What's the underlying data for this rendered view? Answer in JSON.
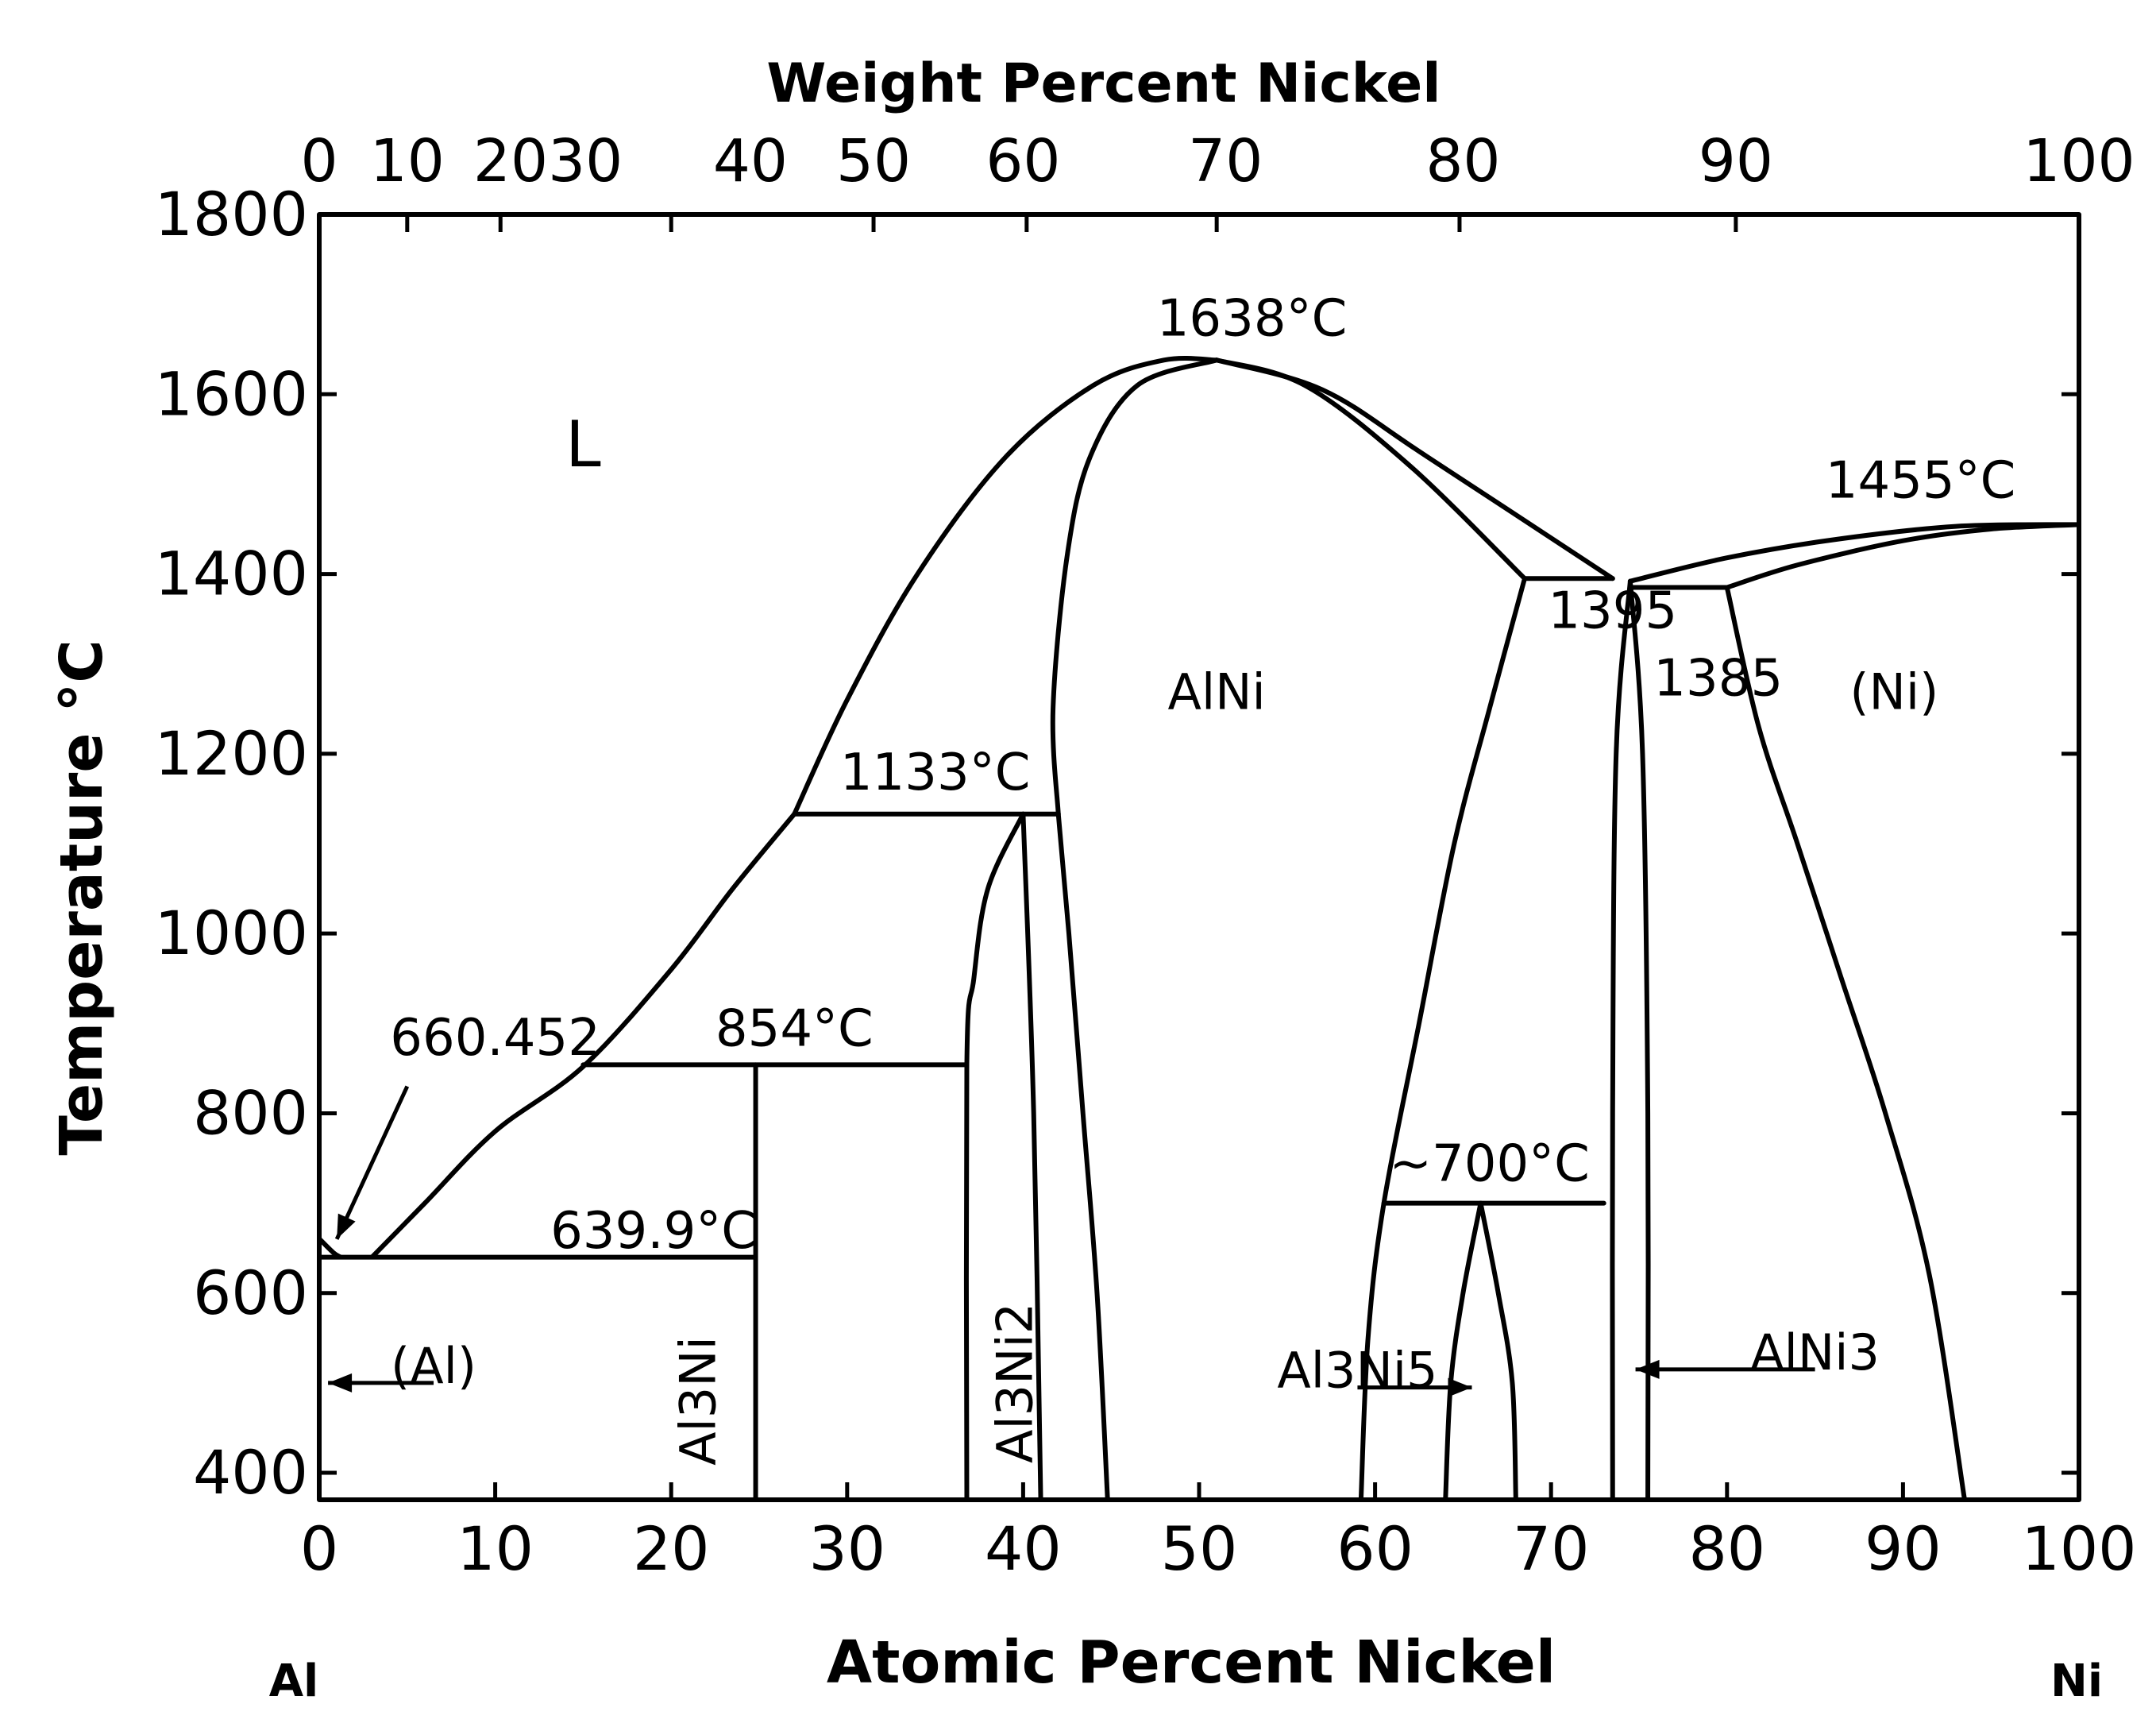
{
  "chart_data": {
    "type": "phase-diagram",
    "title": "",
    "top_axis_label": "Weight Percent Nickel",
    "top_tick_labels": [
      {
        "label": "0",
        "at": 0
      },
      {
        "label": "10",
        "at": 5
      },
      {
        "label": "2030",
        "at": 13
      },
      {
        "label": "40",
        "at": 24.5
      },
      {
        "label": "50",
        "at": 31.5
      },
      {
        "label": "60",
        "at": 40
      },
      {
        "label": "70",
        "at": 51.5
      },
      {
        "label": "80",
        "at": 65
      },
      {
        "label": "90",
        "at": 80.5
      },
      {
        "label": "100",
        "at": 100
      }
    ],
    "top_tick_marks": [
      5,
      10.3,
      20,
      31.5,
      40.2,
      51,
      64.8,
      80.5
    ],
    "xlabel": "Atomic Percent Nickel",
    "ylabel": "Temperature °C",
    "xlim": [
      0,
      100
    ],
    "ylim": [
      370,
      1800
    ],
    "x_ticks": [
      0,
      10,
      20,
      30,
      40,
      50,
      60,
      70,
      80,
      90,
      100
    ],
    "y_ticks": [
      400,
      600,
      800,
      1000,
      1200,
      1400,
      1600,
      1800
    ],
    "endpoint_labels": {
      "left": "Al",
      "right": "Ni"
    },
    "phase_labels": [
      {
        "text": "L",
        "x": 15,
        "y": 1520
      },
      {
        "text": "AlNi",
        "x": 51,
        "y": 1250
      },
      {
        "text": "(Ni)",
        "x": 89.5,
        "y": 1250
      },
      {
        "text": "(Al)",
        "x": 6.5,
        "y": 500
      },
      {
        "text": "Al3Ni",
        "x": 22.5,
        "y": 480,
        "rotated": true
      },
      {
        "text": "Al3Ni2",
        "x": 40.5,
        "y": 500,
        "rotated": true
      },
      {
        "text": "Al3Ni5",
        "x": 59,
        "y": 495
      },
      {
        "text": "AlNi3",
        "x": 85,
        "y": 515
      }
    ],
    "temperature_labels": [
      {
        "text": "1638°C",
        "x": 53,
        "y": 1665
      },
      {
        "text": "1455°C",
        "x": 91,
        "y": 1485
      },
      {
        "text": "1395",
        "x": 73.5,
        "y": 1340
      },
      {
        "text": "1385",
        "x": 79.5,
        "y": 1265
      },
      {
        "text": "1133°C",
        "x": 35,
        "y": 1160
      },
      {
        "text": "854°C",
        "x": 27,
        "y": 875
      },
      {
        "text": "660.452",
        "x": 10,
        "y": 865
      },
      {
        "text": "639.9°C",
        "x": 19,
        "y": 650
      },
      {
        "text": "~700°C",
        "x": 66.5,
        "y": 725
      }
    ],
    "invariant_lines": [
      {
        "T": 639.9,
        "x": [
          0,
          24.8
        ]
      },
      {
        "T": 854,
        "x": [
          15,
          36.8
        ]
      },
      {
        "T": 1133,
        "x": [
          27,
          42
        ]
      },
      {
        "T": 1395,
        "x": [
          68.5,
          73.5
        ]
      },
      {
        "T": 1385,
        "x": [
          74.5,
          80
        ]
      },
      {
        "T": 700,
        "x": [
          60.5,
          73
        ]
      }
    ],
    "boundaries": [
      {
        "name": "liquidus-al-rich",
        "points": [
          [
            3,
            640
          ],
          [
            6,
            700
          ],
          [
            10,
            780
          ],
          [
            15,
            852
          ],
          [
            20,
            960
          ],
          [
            23.5,
            1050
          ],
          [
            27,
            1133
          ]
        ]
      },
      {
        "name": "liquidus-alni-left",
        "points": [
          [
            27,
            1133
          ],
          [
            30,
            1260
          ],
          [
            34,
            1400
          ],
          [
            39,
            1530
          ],
          [
            44,
            1610
          ],
          [
            48,
            1638
          ],
          [
            51,
            1638
          ]
        ]
      },
      {
        "name": "alni-solidus-left",
        "points": [
          [
            42,
            1133
          ],
          [
            41.7,
            1250
          ],
          [
            42.5,
            1420
          ],
          [
            43.8,
            1530
          ],
          [
            46.5,
            1610
          ],
          [
            51,
            1638
          ]
        ]
      },
      {
        "name": "alni-liquidus-right",
        "points": [
          [
            51,
            1638
          ],
          [
            56,
            1610
          ],
          [
            62,
            1520
          ],
          [
            68.5,
            1395
          ]
        ]
      },
      {
        "name": "alni-solidus-right",
        "points": [
          [
            51,
            1638
          ],
          [
            57,
            1605
          ],
          [
            63,
            1530
          ],
          [
            73.5,
            1395
          ]
        ]
      },
      {
        "name": "ni-liquidus",
        "points": [
          [
            74.5,
            1392
          ],
          [
            80,
            1418
          ],
          [
            86,
            1438
          ],
          [
            93,
            1453
          ],
          [
            100,
            1455
          ]
        ]
      },
      {
        "name": "ni-solidus",
        "points": [
          [
            80,
            1385
          ],
          [
            84,
            1410
          ],
          [
            90,
            1437
          ],
          [
            95,
            1450
          ],
          [
            100,
            1455
          ]
        ]
      },
      {
        "name": "ni-solvus",
        "points": [
          [
            80,
            1385
          ],
          [
            81.8,
            1230
          ],
          [
            84,
            1100
          ],
          [
            86.5,
            950
          ],
          [
            89,
            800
          ],
          [
            91.5,
            620
          ],
          [
            93.5,
            370
          ]
        ]
      },
      {
        "name": "al3ni2-left",
        "points": [
          [
            40,
            1133
          ],
          [
            38,
            1050
          ],
          [
            37.2,
            950
          ],
          [
            36.8,
            854
          ],
          [
            36.8,
            370
          ]
        ]
      },
      {
        "name": "al3ni2-right",
        "points": [
          [
            40,
            1133
          ],
          [
            40.6,
            800
          ],
          [
            41,
            370
          ]
        ]
      },
      {
        "name": "alni-al-rich-solvus",
        "points": [
          [
            42,
            1133
          ],
          [
            42.6,
            1000
          ],
          [
            43.4,
            800
          ],
          [
            44.2,
            600
          ],
          [
            44.8,
            370
          ]
        ]
      },
      {
        "name": "alni-ni-rich-solvus",
        "points": [
          [
            68.5,
            1395
          ],
          [
            66.5,
            1250
          ],
          [
            64.5,
            1100
          ],
          [
            62.5,
            900
          ],
          [
            60.5,
            700
          ],
          [
            59.6,
            550
          ],
          [
            59.2,
            370
          ]
        ]
      },
      {
        "name": "al3ni5-left",
        "points": [
          [
            66,
            700
          ],
          [
            65,
            600
          ],
          [
            64.3,
            500
          ],
          [
            64,
            370
          ]
        ]
      },
      {
        "name": "al3ni5-right",
        "points": [
          [
            66,
            700
          ],
          [
            67,
            600
          ],
          [
            67.8,
            500
          ],
          [
            68,
            370
          ]
        ]
      },
      {
        "name": "alni3-left",
        "points": [
          [
            74.5,
            1392
          ],
          [
            73.7,
            1200
          ],
          [
            73.5,
            800
          ],
          [
            73.5,
            370
          ]
        ]
      },
      {
        "name": "alni3-right",
        "points": [
          [
            74.5,
            1392
          ],
          [
            75.2,
            1200
          ],
          [
            75.5,
            800
          ],
          [
            75.5,
            370
          ]
        ]
      },
      {
        "name": "al3ni-compound",
        "points": [
          [
            24.8,
            854
          ],
          [
            24.8,
            370
          ]
        ]
      },
      {
        "name": "al-solidus",
        "points": [
          [
            0,
            660.45
          ],
          [
            0.8,
            645
          ],
          [
            1.2,
            640
          ]
        ]
      }
    ],
    "annotations": [
      {
        "from": [
          5,
          830
        ],
        "to": [
          1,
          660
        ]
      },
      {
        "from": [
          6.5,
          500
        ],
        "to": [
          0.5,
          500
        ]
      },
      {
        "from": [
          59,
          495
        ],
        "to": [
          65.5,
          495
        ]
      },
      {
        "from": [
          85,
          515
        ],
        "to": [
          74.8,
          515
        ]
      }
    ]
  }
}
